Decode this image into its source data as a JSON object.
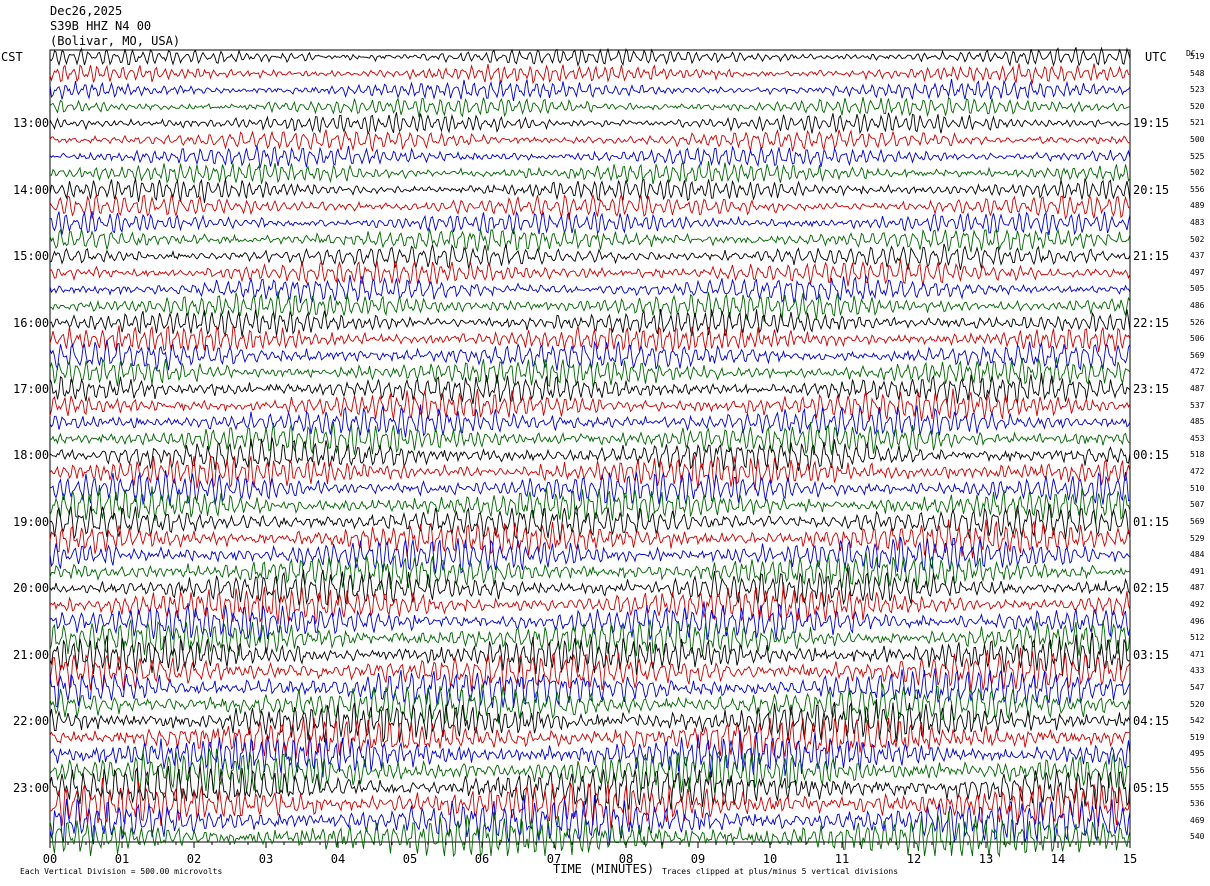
{
  "header": {
    "date": "Dec26,2025",
    "station": "S39B HHZ N4 00",
    "location": "(Bolivar, MO, USA)"
  },
  "tz_left": "CST",
  "tz_right": "UTC",
  "dc_label": "DC",
  "footer": {
    "left": "Each Vertical Division =  500.00 microvolts",
    "right": "Traces clipped at plus/minus 5 vertical divisions"
  },
  "colors": {
    "trace_cycle": [
      "#000000",
      "#cc0000",
      "#0000cc",
      "#006600"
    ]
  },
  "chart_data": {
    "type": "line",
    "title": "Dec26,2025",
    "xlabel": "TIME (MINUTES)",
    "ylabel": "",
    "xlim": [
      0,
      15
    ],
    "x_ticks": [
      "00",
      "01",
      "02",
      "03",
      "04",
      "05",
      "06",
      "07",
      "08",
      "09",
      "10",
      "11",
      "12",
      "13",
      "14",
      "15"
    ],
    "left_hour_labels": [
      "13:00",
      "14:00",
      "15:00",
      "16:00",
      "17:00",
      "18:00",
      "19:00",
      "20:00",
      "21:00",
      "22:00",
      "23:00"
    ],
    "right_hour_labels": [
      "19:15",
      "20:15",
      "21:15",
      "22:15",
      "23:15",
      "00:15",
      "01:15",
      "02:15",
      "03:15",
      "04:15",
      "05:15"
    ],
    "trace_count": 48,
    "dc_offsets": [
      519,
      548,
      523,
      520,
      521,
      500,
      525,
      502,
      556,
      489,
      483,
      502,
      437,
      497,
      505,
      486,
      526,
      506,
      569,
      472,
      487,
      537,
      485,
      453,
      518,
      472,
      510,
      507,
      569,
      529,
      484,
      491,
      487,
      492,
      496,
      512,
      471,
      433,
      547,
      520,
      542,
      519,
      495,
      556,
      555,
      536,
      469,
      540
    ]
  }
}
